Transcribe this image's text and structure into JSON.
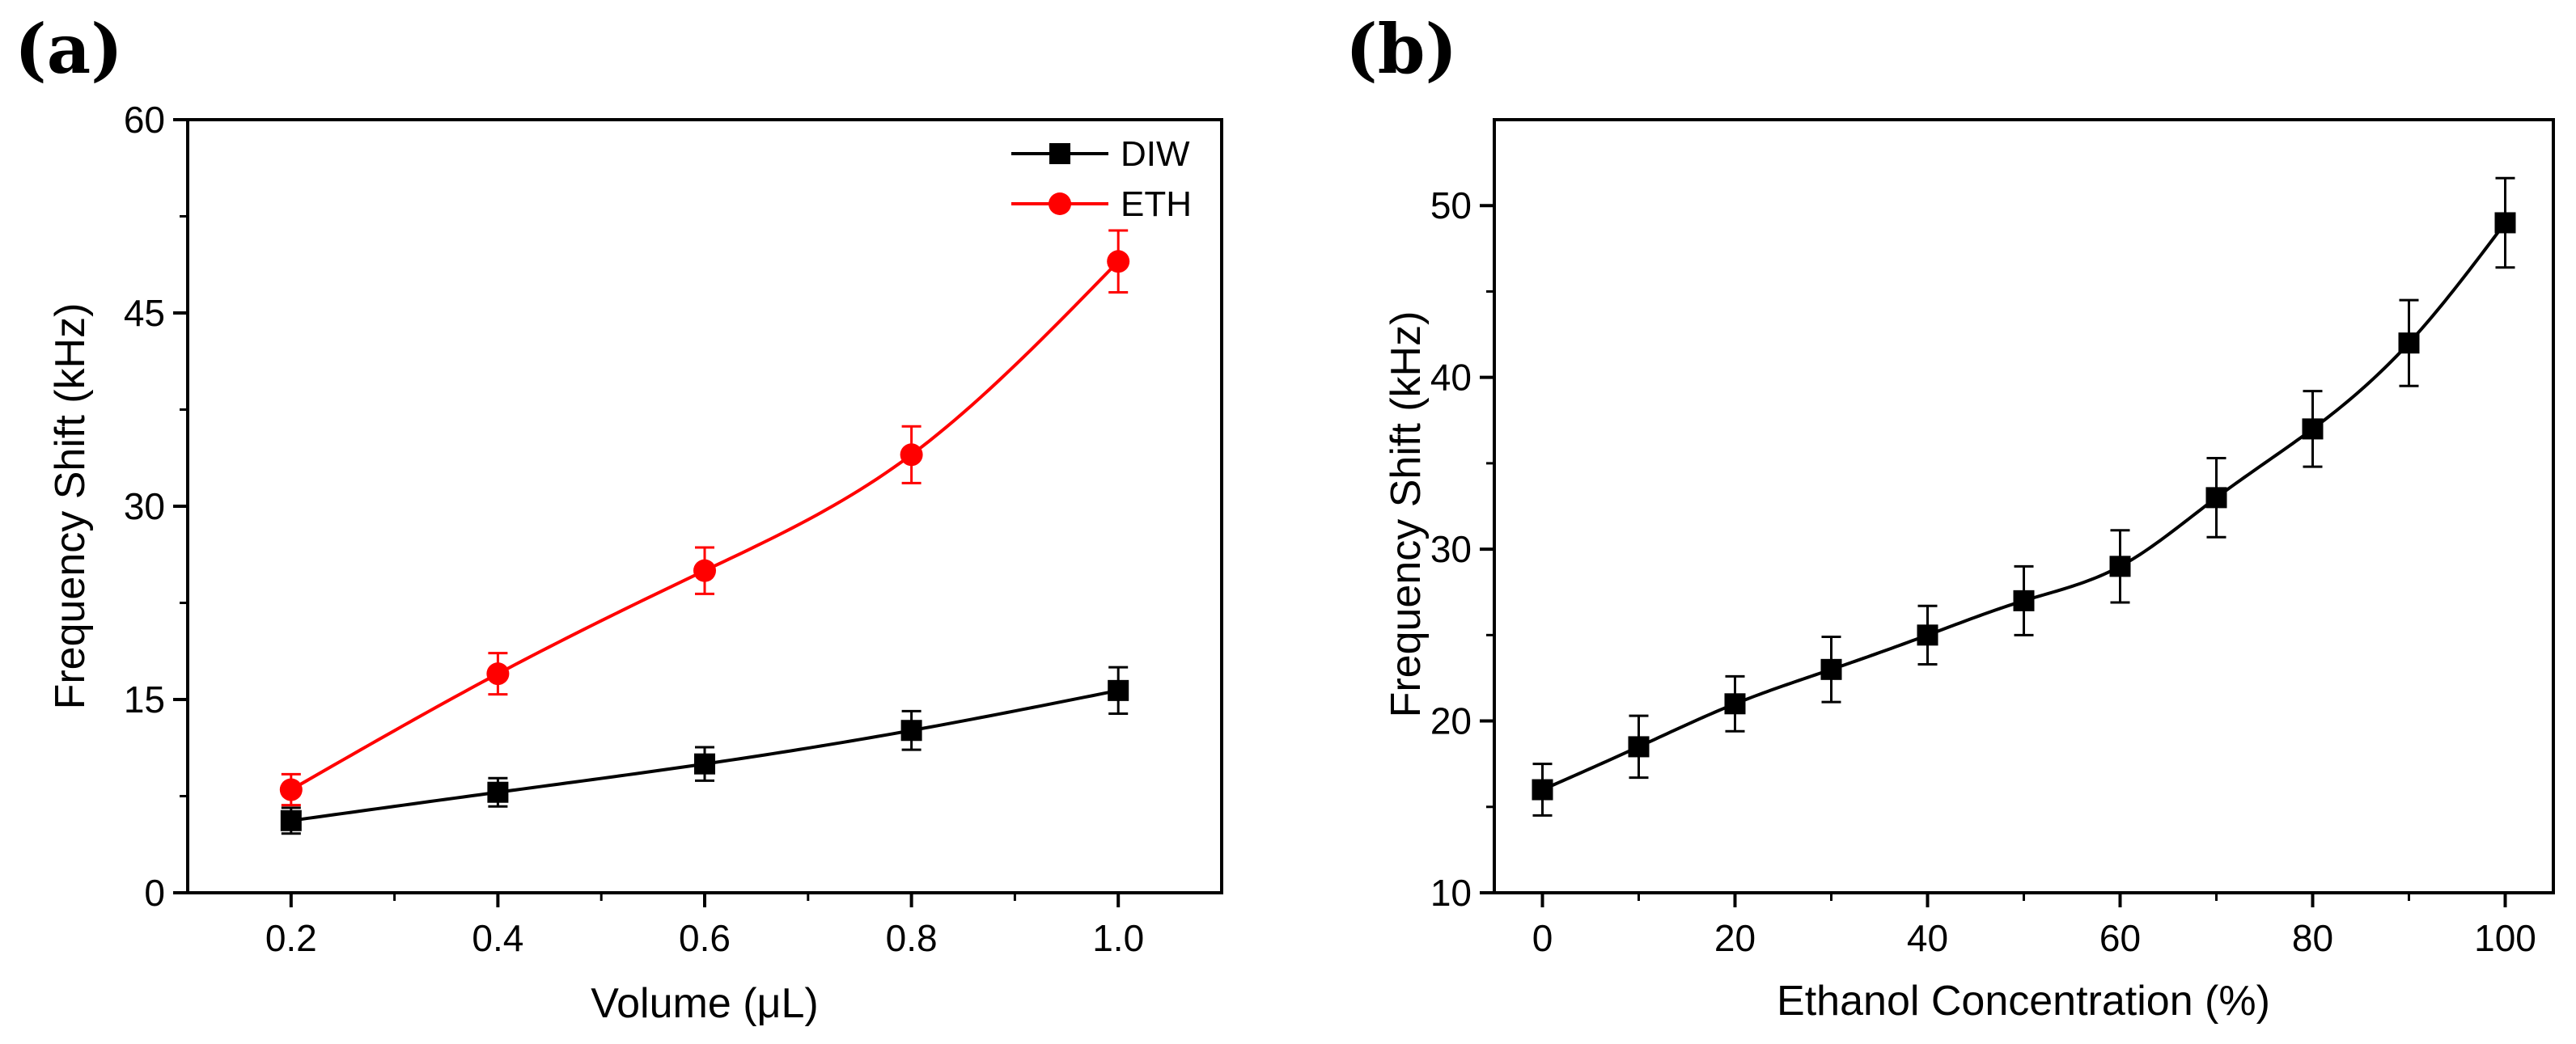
{
  "chart_data": [
    {
      "panel": "(a)",
      "type": "line",
      "xlabel": "Volume (μL)",
      "ylabel": "Frequency Shift (kHz)",
      "xlim": [
        0.1,
        1.1
      ],
      "ylim": [
        0,
        60
      ],
      "xticks": [
        "0.2",
        "0.4",
        "0.6",
        "0.8",
        "1.0"
      ],
      "xtick_values": [
        0.2,
        0.4,
        0.6,
        0.8,
        1.0
      ],
      "yticks": [
        "0",
        "15",
        "30",
        "45",
        "60"
      ],
      "ytick_values": [
        0,
        15,
        30,
        45,
        60
      ],
      "legend_position": "top-right",
      "series": [
        {
          "name": "DIW",
          "color": "#000000",
          "marker": "square",
          "x": [
            0.2,
            0.4,
            0.6,
            0.8,
            1.0
          ],
          "y": [
            5.6,
            7.8,
            10.0,
            12.6,
            15.7
          ],
          "err": [
            1.0,
            1.1,
            1.3,
            1.5,
            1.8
          ]
        },
        {
          "name": "ETH",
          "color": "#ff0000",
          "marker": "circle",
          "x": [
            0.2,
            0.4,
            0.6,
            0.8,
            1.0
          ],
          "y": [
            8.0,
            17.0,
            25.0,
            34.0,
            49.0
          ],
          "err": [
            1.2,
            1.6,
            1.8,
            2.2,
            2.4
          ]
        }
      ]
    },
    {
      "panel": "(b)",
      "type": "line",
      "xlabel": "Ethanol Concentration (%)",
      "ylabel": "Frequency Shift (kHz)",
      "xlim": [
        -5,
        105
      ],
      "ylim": [
        10,
        55
      ],
      "xticks": [
        "0",
        "20",
        "40",
        "60",
        "80",
        "100"
      ],
      "xtick_values": [
        0,
        20,
        40,
        60,
        80,
        100
      ],
      "yticks": [
        "10",
        "20",
        "30",
        "40",
        "50"
      ],
      "ytick_values": [
        10,
        20,
        30,
        40,
        50
      ],
      "series": [
        {
          "color": "#000000",
          "marker": "square",
          "x": [
            0,
            10,
            20,
            30,
            40,
            50,
            60,
            70,
            80,
            90,
            100
          ],
          "y": [
            16.0,
            18.5,
            21.0,
            23.0,
            25.0,
            27.0,
            29.0,
            33.0,
            37.0,
            42.0,
            49.0
          ],
          "err": [
            1.5,
            1.8,
            1.6,
            1.9,
            1.7,
            2.0,
            2.1,
            2.3,
            2.2,
            2.5,
            2.6
          ]
        }
      ]
    }
  ]
}
